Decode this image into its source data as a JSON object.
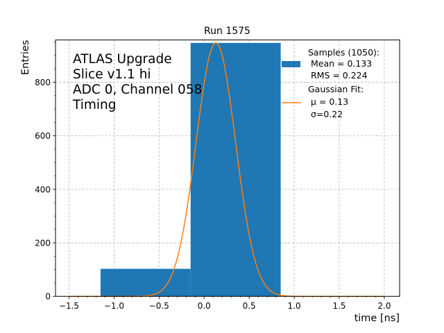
{
  "chart_data": {
    "type": "bar",
    "title": "Run 1575",
    "xlabel": "time [ns]",
    "ylabel": "Entries",
    "xlim": [
      -1.65,
      2.17
    ],
    "ylim": [
      0,
      958
    ],
    "grid": true,
    "x_ticks": [
      -1.5,
      -1.0,
      -0.5,
      0.0,
      0.5,
      1.0,
      1.5,
      2.0
    ],
    "x_tick_labels": [
      "−1.5",
      "−1.0",
      "−0.5",
      "0.0",
      "0.5",
      "1.0",
      "1.5",
      "2.0"
    ],
    "y_ticks": [
      0,
      200,
      400,
      600,
      800
    ],
    "y_tick_labels": [
      "0",
      "200",
      "400",
      "600",
      "800"
    ],
    "annotation_lines": [
      "ATLAS Upgrade",
      "Slice v1.1 hi",
      "ADC 0, Channel 058",
      "Timing"
    ],
    "histogram": {
      "name_lines": [
        "Samples (1050):",
        " Mean = 0.133",
        " RMS = 0.224"
      ],
      "color": "#1f77b4",
      "bins": [
        {
          "x0": -1.15,
          "x1": -0.15,
          "value": 103
        },
        {
          "x0": -0.15,
          "x1": 0.85,
          "value": 947
        }
      ]
    },
    "fit": {
      "name_lines": [
        "Gaussian Fit:",
        " μ = 0.13",
        " σ=0.22"
      ],
      "color": "#ff7f0e",
      "mu": 0.13,
      "sigma": 0.22,
      "amplitude": 947,
      "x_range": [
        -1.5,
        2.0
      ]
    },
    "legend_position": "top-right"
  }
}
